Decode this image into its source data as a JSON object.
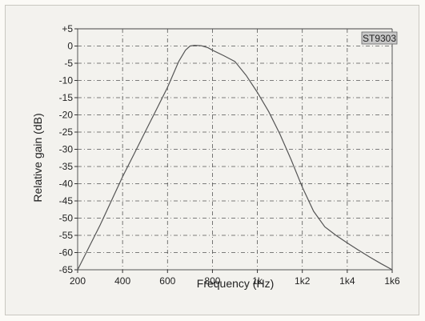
{
  "chart_data": {
    "type": "line",
    "title": "",
    "xlabel": "Frequency (Hz)",
    "ylabel": "Relative gain (dB)",
    "annotation": "ST9303",
    "x_tick_values": [
      200,
      400,
      600,
      800,
      1000,
      1200,
      1400,
      1600
    ],
    "x_tick_labels": [
      "200",
      "400",
      "600",
      "800",
      "1k",
      "1k2",
      "1k4",
      "1k6"
    ],
    "y_tick_values": [
      5,
      0,
      -5,
      -10,
      -15,
      -20,
      -25,
      -30,
      -35,
      -40,
      -45,
      -50,
      -55,
      -60,
      -65
    ],
    "y_tick_labels": [
      "+5",
      "0",
      "-5",
      "-10",
      "-15",
      "-20",
      "-25",
      "-30",
      "-35",
      "-40",
      "-45",
      "-50",
      "-55",
      "-60",
      "-65"
    ],
    "xlim": [
      200,
      1600
    ],
    "ylim": [
      -65,
      5
    ],
    "grid": true,
    "series": [
      {
        "x": [
          200,
          250,
          300,
          350,
          400,
          450,
          500,
          550,
          600,
          650,
          680,
          700,
          720,
          750,
          780,
          800,
          850,
          900,
          950,
          1000,
          1050,
          1100,
          1150,
          1200,
          1250,
          1300,
          1350,
          1400,
          1450,
          1500,
          1550,
          1600
        ],
        "y": [
          -65,
          -58.5,
          -52,
          -45,
          -38,
          -31.5,
          -25,
          -18.5,
          -12,
          -4.5,
          -1.2,
          0,
          0.2,
          0.1,
          -0.5,
          -1.2,
          -2.8,
          -4.5,
          -8.5,
          -13.5,
          -19,
          -25.5,
          -33,
          -41,
          -48,
          -52.5,
          -55,
          -57.2,
          -59.3,
          -61.3,
          -63.2,
          -65
        ]
      }
    ],
    "colors": {
      "line": "#555555",
      "grid": "#555555",
      "annotation_bg": "#c8c8c8"
    }
  }
}
